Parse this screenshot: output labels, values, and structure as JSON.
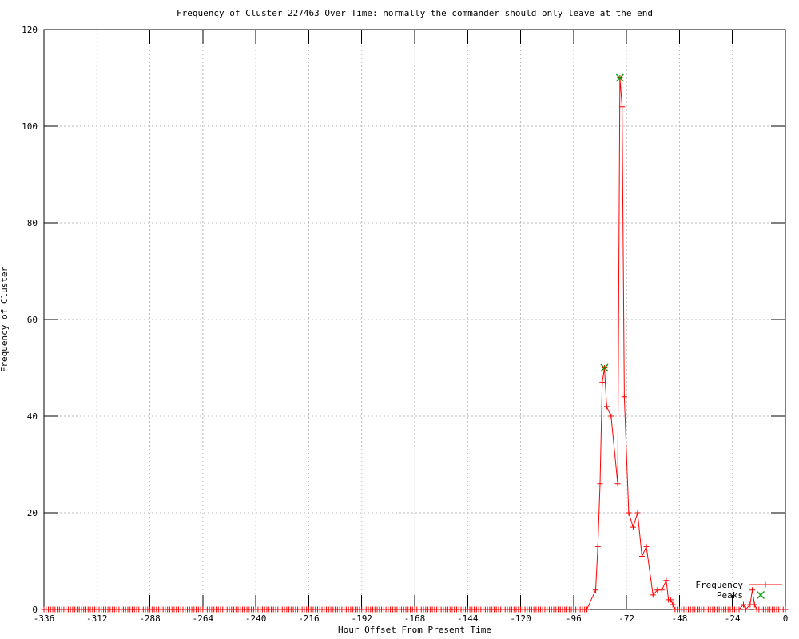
{
  "chart": {
    "title": "Frequency of Cluster 227463 Over Time: normally the commander should only leave at the end",
    "xlabel": "Hour Offset From Present Time",
    "ylabel": "Frequency of Cluster"
  },
  "chart_data": {
    "type": "line",
    "title": "Frequency of Cluster 227463 Over Time: normally the commander should only leave at the end",
    "xlabel": "Hour Offset From Present Time",
    "ylabel": "Frequency of Cluster",
    "xlim": [
      -336,
      0
    ],
    "ylim": [
      0,
      120
    ],
    "xticks": [
      -336,
      -312,
      -288,
      -264,
      -240,
      -216,
      -192,
      -168,
      -144,
      -120,
      -96,
      -72,
      -48,
      -24,
      0
    ],
    "yticks": [
      0,
      20,
      40,
      60,
      80,
      100,
      120
    ],
    "grid": true,
    "legend_position": "inside-bottom-right",
    "colors": {
      "frequency_series": "#ff0000",
      "peaks_series": "#00a000",
      "grid_line": "#b8b8b8",
      "border": "#000000"
    },
    "series": [
      {
        "name": "Frequency",
        "color": "#ff0000",
        "marker": "plus",
        "zero_runs": [
          [
            -336,
            -90
          ],
          [
            -50,
            -21
          ],
          [
            -13,
            0
          ]
        ],
        "points": [
          [
            -86,
            4
          ],
          [
            -85,
            13
          ],
          [
            -84,
            26
          ],
          [
            -83,
            47
          ],
          [
            -82,
            50
          ],
          [
            -81,
            42
          ],
          [
            -79,
            40
          ],
          [
            -76,
            26
          ],
          [
            -75,
            110
          ],
          [
            -74,
            104
          ],
          [
            -73,
            44
          ],
          [
            -71,
            20
          ],
          [
            -69,
            17
          ],
          [
            -67,
            20
          ],
          [
            -65,
            11
          ],
          [
            -63,
            13
          ],
          [
            -60,
            3
          ],
          [
            -58,
            4
          ],
          [
            -56,
            4
          ],
          [
            -54,
            6
          ],
          [
            -53,
            2
          ],
          [
            -52,
            2
          ],
          [
            -51,
            1
          ],
          [
            -19,
            1
          ],
          [
            -18,
            0
          ],
          [
            -16,
            1
          ],
          [
            -15,
            4
          ],
          [
            -14,
            1
          ]
        ]
      },
      {
        "name": "Peaks",
        "color": "#00a000",
        "marker": "cross",
        "points": [
          [
            -82,
            50
          ],
          [
            -75,
            110
          ]
        ]
      }
    ]
  }
}
